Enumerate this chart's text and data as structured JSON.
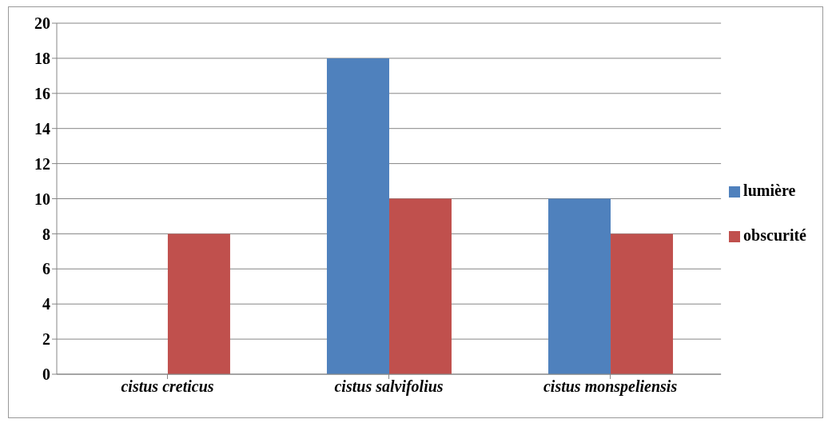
{
  "chart_data": {
    "type": "bar",
    "categories": [
      "cistus creticus",
      "cistus salvifolius",
      "cistus monspeliensis"
    ],
    "series": [
      {
        "name": "lumière",
        "color": "#4f81bd",
        "values": [
          0,
          18,
          10
        ]
      },
      {
        "name": "obscurité",
        "color": "#c0504d",
        "values": [
          8,
          10,
          8
        ]
      }
    ],
    "ylim": [
      0,
      20
    ],
    "yticks": [
      0,
      2,
      4,
      6,
      8,
      10,
      12,
      14,
      16,
      18,
      20
    ],
    "grid": "y",
    "legend": "right"
  }
}
